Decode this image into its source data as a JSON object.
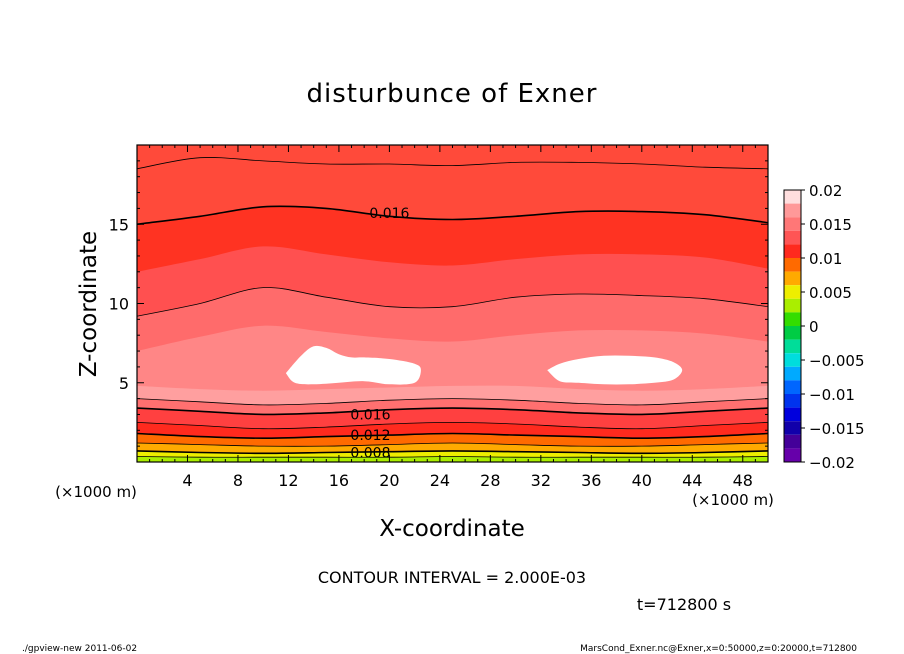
{
  "chart_data": {
    "type": "contour",
    "title": "disturbunce of Exner",
    "xlabel": "X-coordinate",
    "ylabel": "Z-coordinate",
    "x_unit_left": "(×1000 m)",
    "x_unit_right": "(×1000 m)",
    "xlim": [
      0,
      50
    ],
    "ylim": [
      0,
      20
    ],
    "x_ticks": [
      4,
      8,
      12,
      16,
      20,
      24,
      28,
      32,
      36,
      40,
      44,
      48
    ],
    "y_ticks": [
      5,
      10,
      15
    ],
    "contour_interval_text": "CONTOUR INTERVAL = 2.000E-03",
    "time_text": "t=712800 s",
    "contour_labels": [
      {
        "text": "0.016",
        "x": 20,
        "z": 15.7
      },
      {
        "text": "0.016",
        "x": 18.5,
        "z": 3.0
      },
      {
        "text": "0.012",
        "x": 18.5,
        "z": 1.7
      },
      {
        "text": "0.008",
        "x": 18.5,
        "z": 0.6
      }
    ],
    "colorbar": {
      "ticks": [
        "0.02",
        "0.015",
        "0.01",
        "0.005",
        "0",
        "−0.005",
        "−0.01",
        "−0.015",
        "−0.02"
      ],
      "levels": [
        {
          "from": 0.018,
          "to": 0.02,
          "color": "#ffdede"
        },
        {
          "from": 0.016,
          "to": 0.018,
          "color": "#ff9999"
        },
        {
          "from": 0.014,
          "to": 0.016,
          "color": "#ff7777"
        },
        {
          "from": 0.012,
          "to": 0.014,
          "color": "#ff5555"
        },
        {
          "from": 0.01,
          "to": 0.012,
          "color": "#ff2a1e"
        },
        {
          "from": 0.008,
          "to": 0.01,
          "color": "#ff6a00"
        },
        {
          "from": 0.006,
          "to": 0.008,
          "color": "#ffaa00"
        },
        {
          "from": 0.004,
          "to": 0.006,
          "color": "#eeee00"
        },
        {
          "from": 0.002,
          "to": 0.004,
          "color": "#aaee00"
        },
        {
          "from": 0.0,
          "to": 0.002,
          "color": "#33dd00"
        },
        {
          "from": -0.002,
          "to": 0.0,
          "color": "#00cc44"
        },
        {
          "from": -0.004,
          "to": -0.002,
          "color": "#00dd99"
        },
        {
          "from": -0.006,
          "to": -0.004,
          "color": "#00dddd"
        },
        {
          "from": -0.008,
          "to": -0.006,
          "color": "#00aaff"
        },
        {
          "from": -0.01,
          "to": -0.008,
          "color": "#0066ff"
        },
        {
          "from": -0.012,
          "to": -0.01,
          "color": "#0033ee"
        },
        {
          "from": -0.014,
          "to": -0.012,
          "color": "#0000dd"
        },
        {
          "from": -0.016,
          "to": -0.014,
          "color": "#1100aa"
        },
        {
          "from": -0.018,
          "to": -0.016,
          "color": "#440099"
        },
        {
          "from": -0.02,
          "to": -0.018,
          "color": "#6600aa"
        }
      ]
    },
    "bands": [
      {
        "color": "#ff4a3a",
        "z": [
          18.5,
          19.2,
          19.0,
          18.8,
          18.8,
          18.7,
          18.9,
          18.9,
          18.8,
          18.6,
          18.5
        ]
      },
      {
        "color": "#ff3322",
        "z": [
          15.0,
          15.5,
          16.1,
          16.0,
          15.5,
          15.3,
          15.5,
          15.8,
          15.8,
          15.6,
          15.1
        ]
      },
      {
        "color": "#ff5050",
        "z": [
          12.0,
          12.8,
          13.6,
          13.1,
          12.6,
          12.4,
          12.8,
          13.1,
          13.1,
          12.9,
          12.2
        ]
      },
      {
        "color": "#ff6b6b",
        "z": [
          9.2,
          10.0,
          11.0,
          10.4,
          9.8,
          9.8,
          10.4,
          10.6,
          10.5,
          10.3,
          9.8
        ]
      },
      {
        "color": "#ff8686",
        "z": [
          7.0,
          7.9,
          8.6,
          8.2,
          7.8,
          7.6,
          8.0,
          8.3,
          8.3,
          8.1,
          7.6
        ]
      },
      {
        "color": "#ff9f9f",
        "z": [
          4.8,
          4.6,
          4.5,
          4.6,
          4.7,
          4.8,
          4.8,
          4.6,
          4.5,
          4.6,
          4.8
        ]
      },
      {
        "color": "#ff7070",
        "z": [
          4.0,
          3.8,
          3.6,
          3.7,
          3.9,
          4.0,
          3.9,
          3.7,
          3.6,
          3.8,
          4.0
        ]
      },
      {
        "color": "#ff4040",
        "z": [
          3.4,
          3.2,
          3.0,
          3.1,
          3.3,
          3.4,
          3.3,
          3.1,
          3.0,
          3.2,
          3.4
        ]
      },
      {
        "color": "#ff2a1e",
        "z": [
          2.5,
          2.3,
          2.1,
          2.2,
          2.4,
          2.5,
          2.4,
          2.2,
          2.1,
          2.3,
          2.5
        ]
      },
      {
        "color": "#ff6a00",
        "z": [
          1.8,
          1.6,
          1.5,
          1.6,
          1.7,
          1.8,
          1.7,
          1.6,
          1.5,
          1.6,
          1.8
        ]
      },
      {
        "color": "#ffaa00",
        "z": [
          1.2,
          1.1,
          1.0,
          1.0,
          1.1,
          1.2,
          1.1,
          1.0,
          1.0,
          1.1,
          1.2
        ]
      },
      {
        "color": "#eeee00",
        "z": [
          0.7,
          0.6,
          0.55,
          0.6,
          0.65,
          0.7,
          0.65,
          0.6,
          0.55,
          0.6,
          0.7
        ]
      },
      {
        "color": "#aaee00",
        "z": [
          0.35,
          0.3,
          0.3,
          0.3,
          0.3,
          0.35,
          0.3,
          0.3,
          0.3,
          0.3,
          0.35
        ]
      }
    ],
    "contour_lines": [
      {
        "bold": false,
        "z": [
          18.5,
          19.2,
          19.0,
          18.8,
          18.8,
          18.7,
          18.9,
          18.9,
          18.8,
          18.6,
          18.5
        ]
      },
      {
        "bold": true,
        "z": [
          15.0,
          15.5,
          16.1,
          16.0,
          15.5,
          15.3,
          15.5,
          15.8,
          15.8,
          15.6,
          15.1
        ]
      },
      {
        "bold": false,
        "z": [
          9.2,
          10.0,
          11.0,
          10.4,
          9.8,
          9.8,
          10.4,
          10.6,
          10.5,
          10.3,
          9.8
        ]
      },
      {
        "bold": false,
        "z": [
          4.0,
          3.8,
          3.6,
          3.7,
          3.9,
          4.0,
          3.9,
          3.7,
          3.6,
          3.8,
          4.0
        ]
      },
      {
        "bold": true,
        "z": [
          3.4,
          3.2,
          3.0,
          3.1,
          3.3,
          3.4,
          3.3,
          3.1,
          3.0,
          3.2,
          3.4
        ]
      },
      {
        "bold": false,
        "z": [
          2.5,
          2.3,
          2.1,
          2.2,
          2.4,
          2.5,
          2.4,
          2.2,
          2.1,
          2.3,
          2.5
        ]
      },
      {
        "bold": true,
        "z": [
          1.8,
          1.6,
          1.5,
          1.6,
          1.7,
          1.8,
          1.7,
          1.6,
          1.5,
          1.6,
          1.8
        ]
      },
      {
        "bold": false,
        "z": [
          1.2,
          1.1,
          1.0,
          1.0,
          1.1,
          1.2,
          1.1,
          1.0,
          1.0,
          1.1,
          1.2
        ]
      },
      {
        "bold": true,
        "z": [
          0.7,
          0.6,
          0.55,
          0.6,
          0.65,
          0.7,
          0.65,
          0.6,
          0.55,
          0.6,
          0.7
        ]
      },
      {
        "bold": false,
        "z": [
          0.35,
          0.3,
          0.3,
          0.3,
          0.3,
          0.35,
          0.3,
          0.3,
          0.3,
          0.3,
          0.35
        ]
      }
    ],
    "max_regions": [
      {
        "x": [
          11.8,
          13,
          14,
          15,
          16,
          17,
          18,
          20,
          22,
          22.5,
          22,
          20,
          18,
          16,
          14,
          12.5,
          11.8
        ],
        "z": [
          5.6,
          6.7,
          7.3,
          7.2,
          6.8,
          6.6,
          6.6,
          6.5,
          6.2,
          5.8,
          5.0,
          4.9,
          5.1,
          5.0,
          4.9,
          5.0,
          5.6
        ]
      },
      {
        "x": [
          32.5,
          33.5,
          35,
          37,
          39,
          41,
          42.5,
          43.2,
          42.5,
          41,
          39,
          37,
          35,
          33.5,
          32.5
        ],
        "z": [
          5.8,
          6.2,
          6.5,
          6.7,
          6.7,
          6.6,
          6.3,
          5.8,
          5.2,
          5.0,
          4.9,
          4.9,
          5.0,
          5.1,
          5.8
        ]
      }
    ]
  },
  "footer": {
    "left": "./gpview-new   2011-06-02",
    "right": "MarsCond_Exner.nc@Exner,x=0:50000,z=0:20000,t=712800"
  }
}
